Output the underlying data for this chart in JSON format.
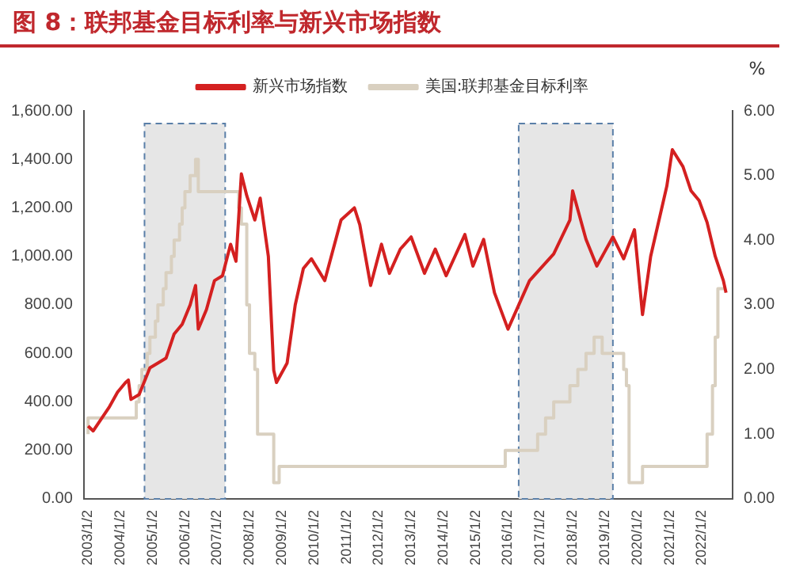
{
  "chart_data": {
    "type": "line",
    "title": "图 8：联邦基金目标利率与新兴市场指数",
    "y2label": "%",
    "legend": "top",
    "grid": false,
    "marker": "none",
    "xlim": [
      "2002-11-15",
      "2022-12-15"
    ],
    "xticks": [
      {
        "value": "2003-01-02",
        "label": "2003/1/2"
      },
      {
        "value": "2004-01-02",
        "label": "2004/1/2"
      },
      {
        "value": "2005-01-02",
        "label": "2005/1/2"
      },
      {
        "value": "2006-01-02",
        "label": "2006/1/2"
      },
      {
        "value": "2007-01-02",
        "label": "2007/1/2"
      },
      {
        "value": "2008-01-02",
        "label": "2008/1/2"
      },
      {
        "value": "2009-01-02",
        "label": "2009/1/2"
      },
      {
        "value": "2010-01-02",
        "label": "2010/1/2"
      },
      {
        "value": "2011-01-02",
        "label": "2011/1/2"
      },
      {
        "value": "2012-01-02",
        "label": "2012/1/2"
      },
      {
        "value": "2013-01-02",
        "label": "2013/1/2"
      },
      {
        "value": "2014-01-02",
        "label": "2014/1/2"
      },
      {
        "value": "2015-01-02",
        "label": "2015/1/2"
      },
      {
        "value": "2016-01-02",
        "label": "2016/1/2"
      },
      {
        "value": "2017-01-02",
        "label": "2017/1/2"
      },
      {
        "value": "2018-01-02",
        "label": "2018/1/2"
      },
      {
        "value": "2019-01-02",
        "label": "2019/1/2"
      },
      {
        "value": "2020-01-02",
        "label": "2020/1/2"
      },
      {
        "value": "2021-01-02",
        "label": "2021/1/2"
      },
      {
        "value": "2022-01-02",
        "label": "2022/1/2"
      }
    ],
    "ylim": [
      0,
      1600
    ],
    "yticks": [
      {
        "value": 0,
        "label": "0.00"
      },
      {
        "value": 200,
        "label": "200.00"
      },
      {
        "value": 400,
        "label": "400.00"
      },
      {
        "value": 600,
        "label": "600.00"
      },
      {
        "value": 800,
        "label": "800.00"
      },
      {
        "value": 1000,
        "label": "1,000.00"
      },
      {
        "value": 1200,
        "label": "1,200.00"
      },
      {
        "value": 1400,
        "label": "1,400.00"
      },
      {
        "value": 1600,
        "label": "1,600.00"
      }
    ],
    "y2lim": [
      0,
      6
    ],
    "y2ticks": [
      {
        "value": 0,
        "label": "0.00"
      },
      {
        "value": 1,
        "label": "1.00"
      },
      {
        "value": 2,
        "label": "2.00"
      },
      {
        "value": 3,
        "label": "3.00"
      },
      {
        "value": 4,
        "label": "4.00"
      },
      {
        "value": 5,
        "label": "5.00"
      },
      {
        "value": 6,
        "label": "6.00"
      }
    ],
    "bands": [
      {
        "axis": "x",
        "from": "2004-10",
        "to": "2007-04",
        "color": "#e6e6e6"
      },
      {
        "axis": "x",
        "from": "2016-05",
        "to": "2019-04",
        "color": "#e6e6e6"
      }
    ],
    "series": [
      {
        "name": "新兴市场指数",
        "type": "line",
        "color": "#d42020",
        "x": [
          "2003-01-02",
          "2003-03",
          "2003-06",
          "2003-09",
          "2003-12",
          "2004-03",
          "2004-04",
          "2004-05",
          "2004-08",
          "2004-12",
          "2005-03",
          "2005-06",
          "2005-09",
          "2005-12",
          "2006-03",
          "2006-05",
          "2006-06",
          "2006-09",
          "2006-12",
          "2007-03",
          "2007-06",
          "2007-08",
          "2007-10",
          "2007-12",
          "2008-03",
          "2008-05",
          "2008-08",
          "2008-10",
          "2008-11",
          "2009-03",
          "2009-06",
          "2009-09",
          "2009-12",
          "2010-05",
          "2010-11",
          "2011-04",
          "2011-06",
          "2011-10",
          "2012-02",
          "2012-05",
          "2012-09",
          "2013-01",
          "2013-06",
          "2013-10",
          "2014-02",
          "2014-09",
          "2014-12",
          "2015-04",
          "2015-08",
          "2016-01",
          "2016-09",
          "2017-06",
          "2017-12",
          "2018-01",
          "2018-06",
          "2018-10",
          "2019-04",
          "2019-08",
          "2019-12",
          "2020-03",
          "2020-06",
          "2020-12",
          "2021-02",
          "2021-06",
          "2021-09",
          "2021-12",
          "2022-03",
          "2022-06",
          "2022-09",
          "2022-10"
        ],
        "values": [
          300,
          280,
          330,
          380,
          440,
          480,
          490,
          410,
          430,
          540,
          560,
          580,
          680,
          720,
          800,
          880,
          700,
          780,
          900,
          920,
          1050,
          980,
          1340,
          1250,
          1150,
          1240,
          1000,
          530,
          480,
          560,
          800,
          950,
          990,
          900,
          1150,
          1200,
          1130,
          880,
          1050,
          930,
          1030,
          1080,
          930,
          1030,
          920,
          1090,
          960,
          1070,
          850,
          700,
          900,
          1010,
          1150,
          1270,
          1070,
          960,
          1080,
          990,
          1110,
          760,
          1000,
          1290,
          1440,
          1370,
          1270,
          1230,
          1140,
          1000,
          900,
          850
        ]
      },
      {
        "name": "美国:联邦基金目标利率",
        "type": "step",
        "axis": "y2",
        "color": "#d9d0c0",
        "x": [
          "2003-01-02",
          "2004-06-30",
          "2004-08",
          "2004-09",
          "2004-11",
          "2004-12",
          "2005-02",
          "2005-03",
          "2005-05",
          "2005-06",
          "2005-08",
          "2005-09",
          "2005-11",
          "2005-12",
          "2006-01",
          "2006-03",
          "2006-05",
          "2006-06",
          "2007-09",
          "2007-10",
          "2007-12",
          "2008-01",
          "2008-03",
          "2008-04",
          "2008-10",
          "2008-12",
          "2015-12",
          "2016-12",
          "2017-03",
          "2017-06",
          "2017-12",
          "2018-03",
          "2018-06",
          "2018-09",
          "2018-12",
          "2019-08",
          "2019-09",
          "2019-10",
          "2020-03",
          "2022-03",
          "2022-05",
          "2022-06",
          "2022-07",
          "2022-09",
          "2022-10"
        ],
        "values": [
          1.0,
          1.25,
          1.5,
          1.75,
          2.0,
          2.25,
          2.5,
          2.75,
          3.0,
          3.25,
          3.5,
          3.75,
          4.0,
          4.25,
          4.5,
          4.75,
          5.0,
          5.25,
          4.75,
          4.5,
          4.25,
          3.0,
          2.25,
          2.0,
          1.0,
          0.25,
          0.5,
          0.75,
          1.0,
          1.25,
          1.5,
          1.75,
          2.0,
          2.25,
          2.5,
          2.25,
          2.0,
          1.75,
          0.25,
          0.5,
          1.0,
          1.75,
          2.5,
          3.25,
          3.25
        ]
      }
    ]
  }
}
